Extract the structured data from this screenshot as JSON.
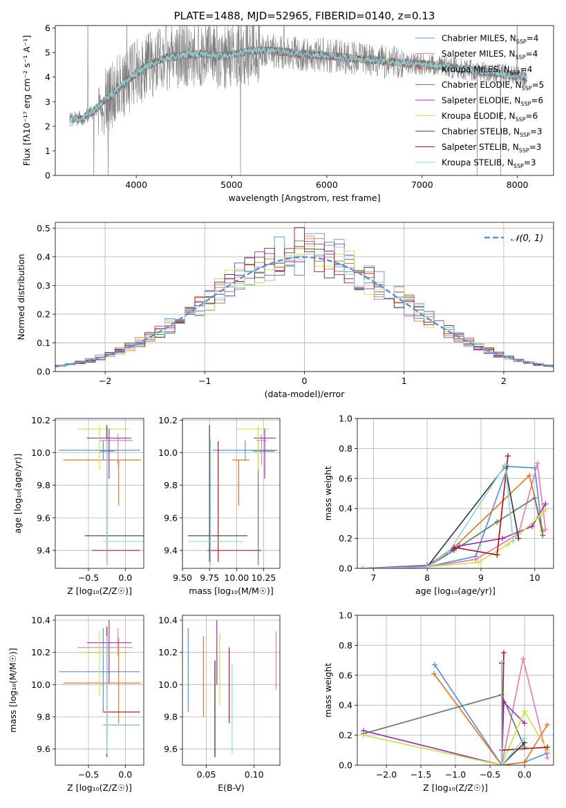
{
  "chart_data": [
    {
      "id": "spectrum",
      "type": "line",
      "title": "PLATE=1488, MJD=52965, FIBERID=0140, z=0.13",
      "xlabel": "wavelength [Angstrom, rest frame]",
      "ylabel": "Flux [fλ10⁻¹⁷ erg cm⁻² s⁻¹ A⁻¹]",
      "xlim": [
        3150,
        8380
      ],
      "ylim": [
        0,
        6.1
      ],
      "xticks": [
        4000,
        5000,
        6000,
        7000,
        8000
      ],
      "yticks": [
        0,
        1,
        2,
        3,
        4,
        5,
        6
      ],
      "legend_position": "top-right",
      "grid": false,
      "observed": {
        "color": "#7f7f7f",
        "x": [
          3300,
          3450,
          3550,
          3650,
          3750,
          3850,
          3950,
          4050,
          4150,
          4250,
          4350,
          4500,
          4700,
          4900,
          5100,
          5300,
          5500,
          5700,
          5900,
          6100,
          6300,
          6500,
          6700,
          6900,
          7100,
          7300,
          7500,
          7700,
          7900,
          8100
        ],
        "y": [
          2.25,
          2.35,
          2.6,
          3.0,
          3.3,
          3.7,
          4.0,
          4.3,
          4.5,
          4.7,
          4.8,
          4.9,
          4.95,
          4.85,
          5.0,
          5.1,
          5.05,
          4.95,
          4.9,
          4.85,
          4.75,
          4.7,
          4.6,
          4.55,
          4.5,
          4.4,
          4.3,
          4.2,
          4.1,
          4.0
        ],
        "noise": 1.4
      },
      "series": [
        {
          "name": "Chabrier MILES, N$_{SSP}$=4",
          "label": "Chabrier MILES, N",
          "sub": "SSP",
          "suffix": "=4",
          "color": "#5b8fd8",
          "marker": "+"
        },
        {
          "name": "Salpeter MILES, N$_{SSP}$=4",
          "label": "Salpeter MILES, N",
          "sub": "SSP",
          "suffix": "=4",
          "color": "#e57fb0",
          "marker": "+"
        },
        {
          "name": "Kroupa MILES, N$_{SSP}$=4",
          "label": "Kroupa MILES, N",
          "sub": "SSP",
          "suffix": "=4",
          "color": "#e0782a",
          "marker": "+"
        },
        {
          "name": "Chabrier ELODIE, N$_{SSP}$=5",
          "label": "Chabrier ELODIE, N",
          "sub": "SSP",
          "suffix": "=5",
          "color": "#5e7f62",
          "marker": "|"
        },
        {
          "name": "Salpeter ELODIE, N$_{SSP}$=6",
          "label": "Salpeter ELODIE, N",
          "sub": "SSP",
          "suffix": "=6",
          "color": "#9a2fb5",
          "marker": "+"
        },
        {
          "name": "Kroupa ELODIE, N$_{SSP}$=6",
          "label": "Kroupa ELODIE, N",
          "sub": "SSP",
          "suffix": "=6",
          "color": "#c9e24a",
          "marker": "|"
        },
        {
          "name": "Chabrier STELIB, N$_{SSP}$=3",
          "label": "Chabrier STELIB, N",
          "sub": "SSP",
          "suffix": "=3",
          "color": "#3c3c3c",
          "marker": "+"
        },
        {
          "name": "Salpeter STELIB, N$_{SSP}$=3",
          "label": "Salpeter STELIB, N",
          "sub": "SSP",
          "suffix": "=3",
          "color": "#b01818",
          "marker": "|"
        },
        {
          "name": "Kroupa STELIB, N$_{SSP}$=3",
          "label": "Kroupa STELIB, N",
          "sub": "SSP",
          "suffix": "=3",
          "color": "#8fd6de",
          "marker": "|"
        }
      ]
    },
    {
      "id": "residuals",
      "type": "line",
      "xlabel": "(data-model)/error",
      "ylabel": "Normed distribution",
      "xlim": [
        -2.5,
        2.5
      ],
      "ylim": [
        0,
        0.52
      ],
      "xticks": [
        -2,
        -1,
        0,
        1,
        2
      ],
      "yticks": [
        0.0,
        0.1,
        0.2,
        0.3,
        0.4,
        0.5
      ],
      "grid": true,
      "legend": "𝒩(0, 1)",
      "gaussian_color": "#5b8fd8",
      "bin_width": 0.1
    },
    {
      "id": "age_vs_Z",
      "type": "scatter",
      "xlabel": "Z [log₁₀(Z/Z☉)]",
      "ylabel": "age  [log₁₀(age/yr)]",
      "xlim": [
        -0.95,
        0.25
      ],
      "ylim": [
        9.29,
        10.21
      ],
      "xticks": [
        -0.5,
        0.0
      ],
      "yticks": [
        9.4,
        9.6,
        9.8,
        10.0,
        10.2
      ],
      "grid": true,
      "points": [
        {
          "s": 0,
          "x": -0.3,
          "y": 10.015,
          "xerr": [
            0.6,
            0.5
          ],
          "yerr": [
            0.06,
            0.06
          ]
        },
        {
          "s": 1,
          "x": -0.1,
          "y": 10.075,
          "xerr": [
            0.25,
            0.2
          ],
          "yerr": [
            0.15,
            0.04
          ]
        },
        {
          "s": 2,
          "x": -0.09,
          "y": 9.955,
          "xerr": [
            0.75,
            0.3
          ],
          "yerr": [
            0.28,
            0.0
          ]
        },
        {
          "s": 3,
          "x": -0.25,
          "y": 10.01,
          "xerr": [
            0.1,
            0.1
          ],
          "yerr": [
            0.7,
            0.1
          ]
        },
        {
          "s": 4,
          "x": -0.22,
          "y": 10.09,
          "xerr": [
            0.3,
            0.3
          ],
          "yerr": [
            0.25,
            0.06
          ]
        },
        {
          "s": 5,
          "x": -0.35,
          "y": 10.145,
          "xerr": [
            0.3,
            0.4
          ],
          "yerr": [
            0.25,
            0.02
          ]
        },
        {
          "s": 6,
          "x": -0.25,
          "y": 9.49,
          "xerr": [
            0.3,
            0.5
          ],
          "yerr": [
            0.16,
            0.68
          ]
        },
        {
          "s": 7,
          "x": -0.25,
          "y": 9.4,
          "xerr": [
            0.2,
            0.45
          ],
          "yerr": [
            0.07,
            0.67
          ]
        },
        {
          "s": 8,
          "x": -0.25,
          "y": 9.455,
          "xerr": [
            0.05,
            0.55
          ],
          "yerr": [
            0.15,
            0.63
          ]
        }
      ]
    },
    {
      "id": "age_vs_mass",
      "type": "scatter",
      "xlabel": "mass [log₁₀(M/M☉)]",
      "xlim": [
        9.5,
        10.4
      ],
      "ylim": [
        9.29,
        10.21
      ],
      "xticks": [
        9.5,
        9.75,
        10.0,
        10.25
      ],
      "yticks": [
        9.4,
        9.6,
        9.8,
        10.0,
        10.2
      ],
      "grid": true,
      "points": [
        {
          "s": 0,
          "x": 10.08,
          "y": 10.015,
          "xerr": [
            0.3,
            0.3
          ],
          "yerr": [
            0.06,
            0.06
          ]
        },
        {
          "s": 1,
          "x": 10.23,
          "y": 10.075,
          "xerr": [
            0.05,
            0.05
          ],
          "yerr": [
            0.15,
            0.04
          ]
        },
        {
          "s": 2,
          "x": 10.02,
          "y": 9.955,
          "xerr": [
            0.06,
            0.1
          ],
          "yerr": [
            0.28,
            0.0
          ]
        },
        {
          "s": 3,
          "x": 10.2,
          "y": 10.01,
          "xerr": [
            0.05,
            0.15
          ],
          "yerr": [
            0.7,
            0.1
          ]
        },
        {
          "s": 4,
          "x": 10.26,
          "y": 10.09,
          "xerr": [
            0.1,
            0.1
          ],
          "yerr": [
            0.25,
            0.06
          ]
        },
        {
          "s": 5,
          "x": 10.2,
          "y": 10.145,
          "xerr": [
            0.2,
            0.1
          ],
          "yerr": [
            0.25,
            0.02
          ]
        },
        {
          "s": 6,
          "x": 9.75,
          "y": 9.49,
          "xerr": [
            0.2,
            0.35
          ],
          "yerr": [
            0.16,
            0.68
          ]
        },
        {
          "s": 7,
          "x": 9.83,
          "y": 9.4,
          "xerr": [
            0.1,
            0.4
          ],
          "yerr": [
            0.07,
            0.67
          ]
        },
        {
          "s": 8,
          "x": 9.76,
          "y": 9.455,
          "xerr": [
            0.2,
            0.3
          ],
          "yerr": [
            0.15,
            0.63
          ]
        }
      ]
    },
    {
      "id": "mw_vs_age",
      "type": "line",
      "xlabel": "age  [log₁₀(age/yr)]",
      "ylabel": "mass weight",
      "xlim": [
        6.7,
        10.35
      ],
      "ylim": [
        0,
        1.0
      ],
      "xticks": [
        7,
        8,
        9,
        10
      ],
      "yticks": [
        0.0,
        0.2,
        0.4,
        0.6,
        0.8,
        1.0
      ],
      "grid": true,
      "series": [
        {
          "s": 0,
          "x": [
            6.8,
            8.0,
            8.9,
            9.5,
            10.0,
            10.15
          ],
          "y": [
            0.0,
            0.01,
            0.08,
            0.68,
            0.67,
            0.22
          ]
        },
        {
          "s": 1,
          "x": [
            7.5,
            8.0,
            8.9,
            9.7,
            10.05,
            10.2
          ],
          "y": [
            0.0,
            0.01,
            0.06,
            0.23,
            0.7,
            0.26
          ]
        },
        {
          "s": 2,
          "x": [
            6.8,
            8.0,
            8.5,
            9.9,
            10.15
          ],
          "y": [
            0.0,
            0.01,
            0.14,
            0.62,
            0.25
          ]
        },
        {
          "s": 3,
          "x": [
            6.8,
            8.0,
            8.5,
            9.3,
            10.0,
            10.15
          ],
          "y": [
            0.0,
            0.01,
            0.12,
            0.31,
            0.47,
            0.22
          ]
        },
        {
          "s": 4,
          "x": [
            6.8,
            8.0,
            8.6,
            9.4,
            9.95,
            10.2
          ],
          "y": [
            0.0,
            0.02,
            0.15,
            0.2,
            0.28,
            0.43
          ]
        },
        {
          "s": 5,
          "x": [
            6.8,
            8.0,
            8.95,
            9.5,
            10.1,
            10.2
          ],
          "y": [
            0.0,
            0.01,
            0.04,
            0.16,
            0.35,
            0.39
          ]
        },
        {
          "s": 6,
          "x": [
            6.8,
            8.0,
            9.45,
            9.7
          ],
          "y": [
            0.0,
            0.01,
            0.68,
            0.2
          ]
        },
        {
          "s": 7,
          "x": [
            6.8,
            8.0,
            8.5,
            9.3,
            9.5
          ],
          "y": [
            0.0,
            0.01,
            0.14,
            0.09,
            0.75
          ]
        },
        {
          "s": 8,
          "x": [
            6.8,
            8.0,
            8.4,
            9.45,
            9.6
          ],
          "y": [
            0.0,
            0.01,
            0.11,
            0.69,
            0.18
          ]
        }
      ]
    },
    {
      "id": "mass_vs_Z",
      "type": "scatter",
      "xlabel": "Z [log₁₀(Z/Z☉)]",
      "ylabel": "mass [log₁₀(M/M☉)]",
      "xlim": [
        -0.95,
        0.25
      ],
      "ylim": [
        9.5,
        10.43
      ],
      "xticks": [
        -0.5,
        0.0
      ],
      "yticks": [
        9.6,
        9.8,
        10.0,
        10.2,
        10.4
      ],
      "grid": true,
      "points": [
        {
          "s": 0,
          "x": -0.3,
          "y": 10.08,
          "xerr": [
            0.6,
            0.5
          ],
          "yerr": [
            0.25,
            0.27
          ]
        },
        {
          "s": 1,
          "x": -0.1,
          "y": 10.23,
          "xerr": [
            0.55,
            0.2
          ],
          "yerr": [
            0.05,
            0.12
          ]
        },
        {
          "s": 2,
          "x": -0.09,
          "y": 10.01,
          "xerr": [
            0.75,
            0.3
          ],
          "yerr": [
            0.25,
            0.28
          ]
        },
        {
          "s": 3,
          "x": -0.25,
          "y": 10.2,
          "xerr": [
            0.3,
            0.3
          ],
          "yerr": [
            0.1,
            0.12
          ]
        },
        {
          "s": 4,
          "x": -0.22,
          "y": 10.26,
          "xerr": [
            0.3,
            0.3
          ],
          "yerr": [
            0.25,
            0.14
          ]
        },
        {
          "s": 5,
          "x": -0.35,
          "y": 10.2,
          "xerr": [
            0.3,
            0.4
          ],
          "yerr": [
            0.27,
            0.13
          ]
        },
        {
          "s": 6,
          "x": -0.25,
          "y": 9.75,
          "xerr": [
            0.05,
            0.45
          ],
          "yerr": [
            0.2,
            0.55
          ]
        },
        {
          "s": 7,
          "x": -0.25,
          "y": 9.83,
          "xerr": [
            0.05,
            0.45
          ],
          "yerr": [
            0.15,
            0.53
          ]
        },
        {
          "s": 8,
          "x": -0.25,
          "y": 9.75,
          "xerr": [
            0.05,
            0.45
          ],
          "yerr": [
            0.18,
            0.55
          ]
        }
      ]
    },
    {
      "id": "mass_vs_ebv",
      "type": "scatter",
      "xlabel": "E(B-V)",
      "xlim": [
        0.025,
        0.127
      ],
      "ylim": [
        9.5,
        10.43
      ],
      "xticks": [
        0.05,
        0.1
      ],
      "yticks": [
        9.6,
        9.8,
        10.0,
        10.2,
        10.4
      ],
      "grid": true,
      "points": [
        {
          "s": 0,
          "x": 0.031,
          "y": 10.08,
          "yerr": [
            0.25,
            0.27
          ]
        },
        {
          "s": 1,
          "x": 0.123,
          "y": 10.15,
          "yerr": [
            0.18,
            0.18
          ]
        },
        {
          "s": 2,
          "x": 0.047,
          "y": 10.05,
          "yerr": [
            0.25,
            0.25
          ]
        },
        {
          "s": 3,
          "x": 0.059,
          "y": 9.95,
          "yerr": [
            0.4,
            0.2
          ]
        },
        {
          "s": 4,
          "x": 0.061,
          "y": 10.25,
          "yerr": [
            0.25,
            0.15
          ]
        },
        {
          "s": 5,
          "x": 0.064,
          "y": 10.12,
          "yerr": [
            0.25,
            0.2
          ]
        },
        {
          "s": 6,
          "x": 0.059,
          "y": 9.8,
          "yerr": [
            0.25,
            0.35
          ]
        },
        {
          "s": 7,
          "x": 0.074,
          "y": 9.99,
          "yerr": [
            0.23,
            0.24
          ]
        },
        {
          "s": 8,
          "x": 0.077,
          "y": 9.85,
          "yerr": [
            0.28,
            0.28
          ]
        }
      ]
    },
    {
      "id": "mw_vs_Z",
      "type": "line",
      "xlabel": "Z [log₁₀(Z/Z☉)]",
      "ylabel": "mass weight",
      "xlim": [
        -2.42,
        0.42
      ],
      "ylim": [
        0,
        1.0
      ],
      "xticks": [
        -2.0,
        -1.5,
        -1.0,
        -0.5,
        0.0
      ],
      "yticks": [
        0.0,
        0.2,
        0.4,
        0.6,
        0.8,
        1.0
      ],
      "grid": true,
      "series": [
        {
          "s": 0,
          "x": [
            -1.3,
            -0.33,
            0.0,
            0.33
          ],
          "y": [
            0.67,
            0.0,
            0.02,
            0.08
          ]
        },
        {
          "s": 1,
          "x": [
            -0.33,
            -0.02,
            0.33
          ],
          "y": [
            0.0,
            0.71,
            0.05
          ]
        },
        {
          "s": 2,
          "x": [
            -1.31,
            -0.33,
            0.0,
            0.33
          ],
          "y": [
            0.61,
            0.0,
            0.02,
            0.27
          ]
        },
        {
          "s": 3,
          "x": [
            -2.33,
            -0.33,
            0.0
          ],
          "y": [
            0.21,
            0.47,
            0.12
          ]
        },
        {
          "s": 4,
          "x": [
            -2.33,
            -0.33,
            -0.3,
            0.0
          ],
          "y": [
            0.23,
            0.0,
            0.42,
            0.28
          ]
        },
        {
          "s": 5,
          "x": [
            -2.33,
            -0.33,
            0.0,
            0.33
          ],
          "y": [
            0.2,
            0.0,
            0.36,
            0.1
          ]
        },
        {
          "s": 6,
          "x": [
            -0.33,
            -0.33,
            0.0
          ],
          "y": [
            0.68,
            0.0,
            0.15
          ]
        },
        {
          "s": 7,
          "x": [
            -0.3,
            -0.33,
            0.33
          ],
          "y": [
            0.75,
            0.1,
            0.12
          ]
        },
        {
          "s": 8,
          "x": [
            -0.33,
            -0.33,
            0.0
          ],
          "y": [
            0.69,
            0.0,
            0.18
          ]
        }
      ]
    }
  ]
}
